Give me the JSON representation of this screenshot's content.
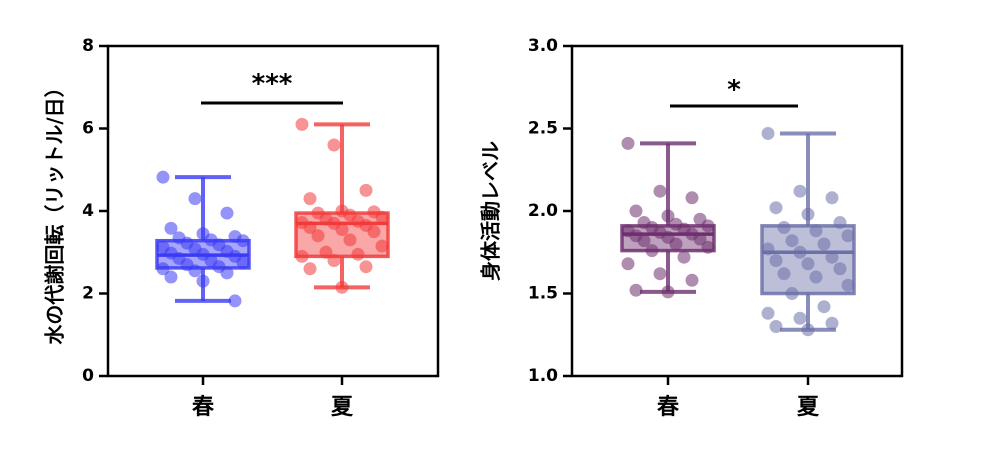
{
  "chart_data": [
    {
      "type": "box",
      "ylabel": "水の代謝回転（リットル/日）",
      "ylim": [
        0,
        8
      ],
      "yticks": [
        "0",
        "2",
        "4",
        "6",
        "8"
      ],
      "categories": [
        "春",
        "夏"
      ],
      "significance": "***",
      "colors": [
        "#3b3bf5",
        "#f23b3b"
      ],
      "boxes": [
        {
          "category": "春",
          "min": 1.82,
          "q1": 2.62,
          "median": 2.93,
          "q3": 3.28,
          "max": 4.82,
          "points": [
            4.82,
            4.3,
            3.95,
            3.58,
            3.45,
            3.38,
            3.35,
            3.3,
            3.28,
            3.22,
            3.18,
            3.12,
            3.08,
            3.02,
            2.98,
            2.95,
            2.9,
            2.85,
            2.8,
            2.75,
            2.7,
            2.65,
            2.6,
            2.55,
            2.5,
            2.4,
            2.3,
            1.82
          ]
        },
        {
          "category": "夏",
          "min": 2.15,
          "q1": 2.9,
          "median": 3.7,
          "q3": 3.95,
          "max": 6.1,
          "points": [
            6.1,
            5.6,
            4.5,
            4.3,
            4.0,
            3.98,
            3.95,
            3.9,
            3.85,
            3.8,
            3.75,
            3.72,
            3.7,
            3.65,
            3.6,
            3.55,
            3.5,
            3.4,
            3.3,
            3.15,
            3.0,
            2.95,
            2.9,
            2.8,
            2.65,
            2.6,
            2.15
          ]
        }
      ]
    },
    {
      "type": "box",
      "ylabel": "身体活動レベル",
      "ylim": [
        1.0,
        3.0
      ],
      "yticks": [
        "1.0",
        "1.5",
        "2.0",
        "2.5",
        "3.0"
      ],
      "categories": [
        "春",
        "夏"
      ],
      "significance": "*",
      "colors": [
        "#6e2f6e",
        "#6c70a8"
      ],
      "boxes": [
        {
          "category": "春",
          "min": 1.51,
          "q1": 1.76,
          "median": 1.86,
          "q3": 1.91,
          "max": 2.41,
          "points": [
            2.41,
            2.12,
            2.08,
            2.0,
            1.97,
            1.95,
            1.93,
            1.92,
            1.91,
            1.9,
            1.89,
            1.88,
            1.87,
            1.86,
            1.85,
            1.84,
            1.83,
            1.82,
            1.8,
            1.78,
            1.76,
            1.72,
            1.68,
            1.62,
            1.58,
            1.52,
            1.51
          ]
        },
        {
          "category": "夏",
          "min": 1.28,
          "q1": 1.5,
          "median": 1.75,
          "q3": 1.91,
          "max": 2.47,
          "points": [
            2.47,
            2.12,
            2.08,
            2.02,
            1.98,
            1.93,
            1.9,
            1.88,
            1.85,
            1.82,
            1.8,
            1.77,
            1.75,
            1.72,
            1.7,
            1.68,
            1.65,
            1.62,
            1.6,
            1.55,
            1.5,
            1.42,
            1.38,
            1.35,
            1.32,
            1.3,
            1.28
          ]
        }
      ]
    }
  ]
}
